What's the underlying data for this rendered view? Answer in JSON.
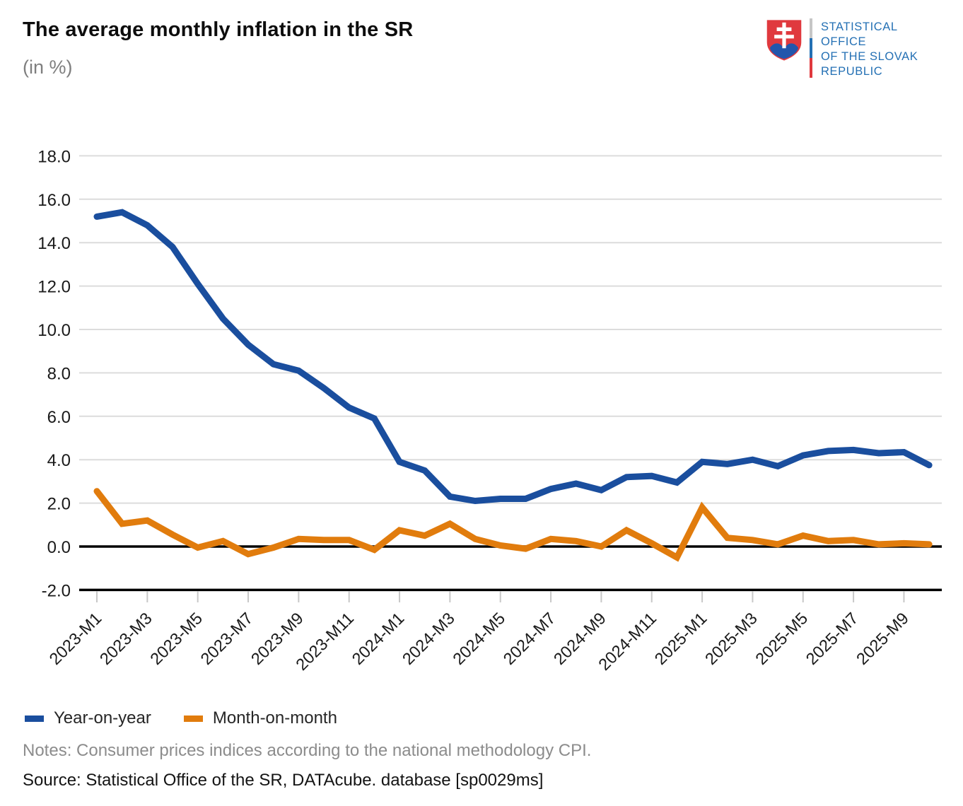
{
  "header": {
    "title": "The average monthly inflation in the SR",
    "subtitle": "(in %)"
  },
  "logo": {
    "org_lines": [
      "STATISTICAL",
      "OFFICE",
      "OF THE SLOVAK",
      "REPUBLIC"
    ],
    "text_color": "#2470b4",
    "shield_red": "#e0393e",
    "shield_blue": "#2256ac",
    "bar_colors": [
      "#c6c6c6",
      "#2470b4",
      "#e0393e"
    ]
  },
  "chart_data": {
    "type": "line",
    "title": "The average monthly inflation in the SR (in %)",
    "x": [
      "2023-M1",
      "2023-M2",
      "2023-M3",
      "2023-M4",
      "2023-M5",
      "2023-M6",
      "2023-M7",
      "2023-M8",
      "2023-M9",
      "2023-M10",
      "2023-M11",
      "2023-M12",
      "2024-M1",
      "2024-M2",
      "2024-M3",
      "2024-M4",
      "2024-M5",
      "2024-M6",
      "2024-M7",
      "2024-M8",
      "2024-M9",
      "2024-M10",
      "2024-M11",
      "2024-M12",
      "2025-M1",
      "2025-M2",
      "2025-M3",
      "2025-M4",
      "2025-M5",
      "2025-M6",
      "2025-M7",
      "2025-M8",
      "2025-M9",
      "2025-M10"
    ],
    "x_tick_labels": [
      "2023-M1",
      "2023-M3",
      "2023-M5",
      "2023-M7",
      "2023-M9",
      "2023-M11",
      "2024-M1",
      "2024-M3",
      "2024-M5",
      "2024-M7",
      "2024-M9",
      "2024-M11",
      "2025-M1",
      "2025-M3",
      "2025-M5",
      "2025-M7",
      "2025-M9"
    ],
    "series": [
      {
        "name": "Year-on-year",
        "color": "#1a4e9e",
        "values": [
          15.2,
          15.4,
          14.8,
          13.8,
          12.1,
          10.5,
          9.3,
          8.4,
          8.1,
          7.3,
          6.4,
          5.9,
          3.9,
          3.5,
          2.3,
          2.1,
          2.2,
          2.2,
          2.65,
          2.9,
          2.6,
          3.2,
          3.25,
          2.95,
          3.9,
          3.8,
          4.0,
          3.7,
          4.2,
          4.4,
          4.45,
          4.3,
          4.35,
          3.75
        ]
      },
      {
        "name": "Month-on-month",
        "color": "#e17c0d",
        "values": [
          2.55,
          1.05,
          1.2,
          0.55,
          -0.05,
          0.25,
          -0.35,
          -0.05,
          0.35,
          0.3,
          0.3,
          -0.15,
          0.75,
          0.5,
          1.05,
          0.35,
          0.05,
          -0.1,
          0.35,
          0.25,
          0.0,
          0.75,
          0.15,
          -0.5,
          1.8,
          0.4,
          0.3,
          0.1,
          0.5,
          0.25,
          0.3,
          0.1,
          0.15,
          0.1
        ]
      }
    ],
    "ylim": [
      -2,
      18
    ],
    "ytick_step": 2,
    "ytick_format_decimals": 1,
    "grid": true,
    "zero_line_black": true,
    "legend_position": "bottom-left"
  },
  "footer": {
    "notes": "Notes: Consumer prices indices according to the national methodology CPI.",
    "source": "Source: Statistical Office of the SR, DATAcube. database [sp0029ms]"
  }
}
